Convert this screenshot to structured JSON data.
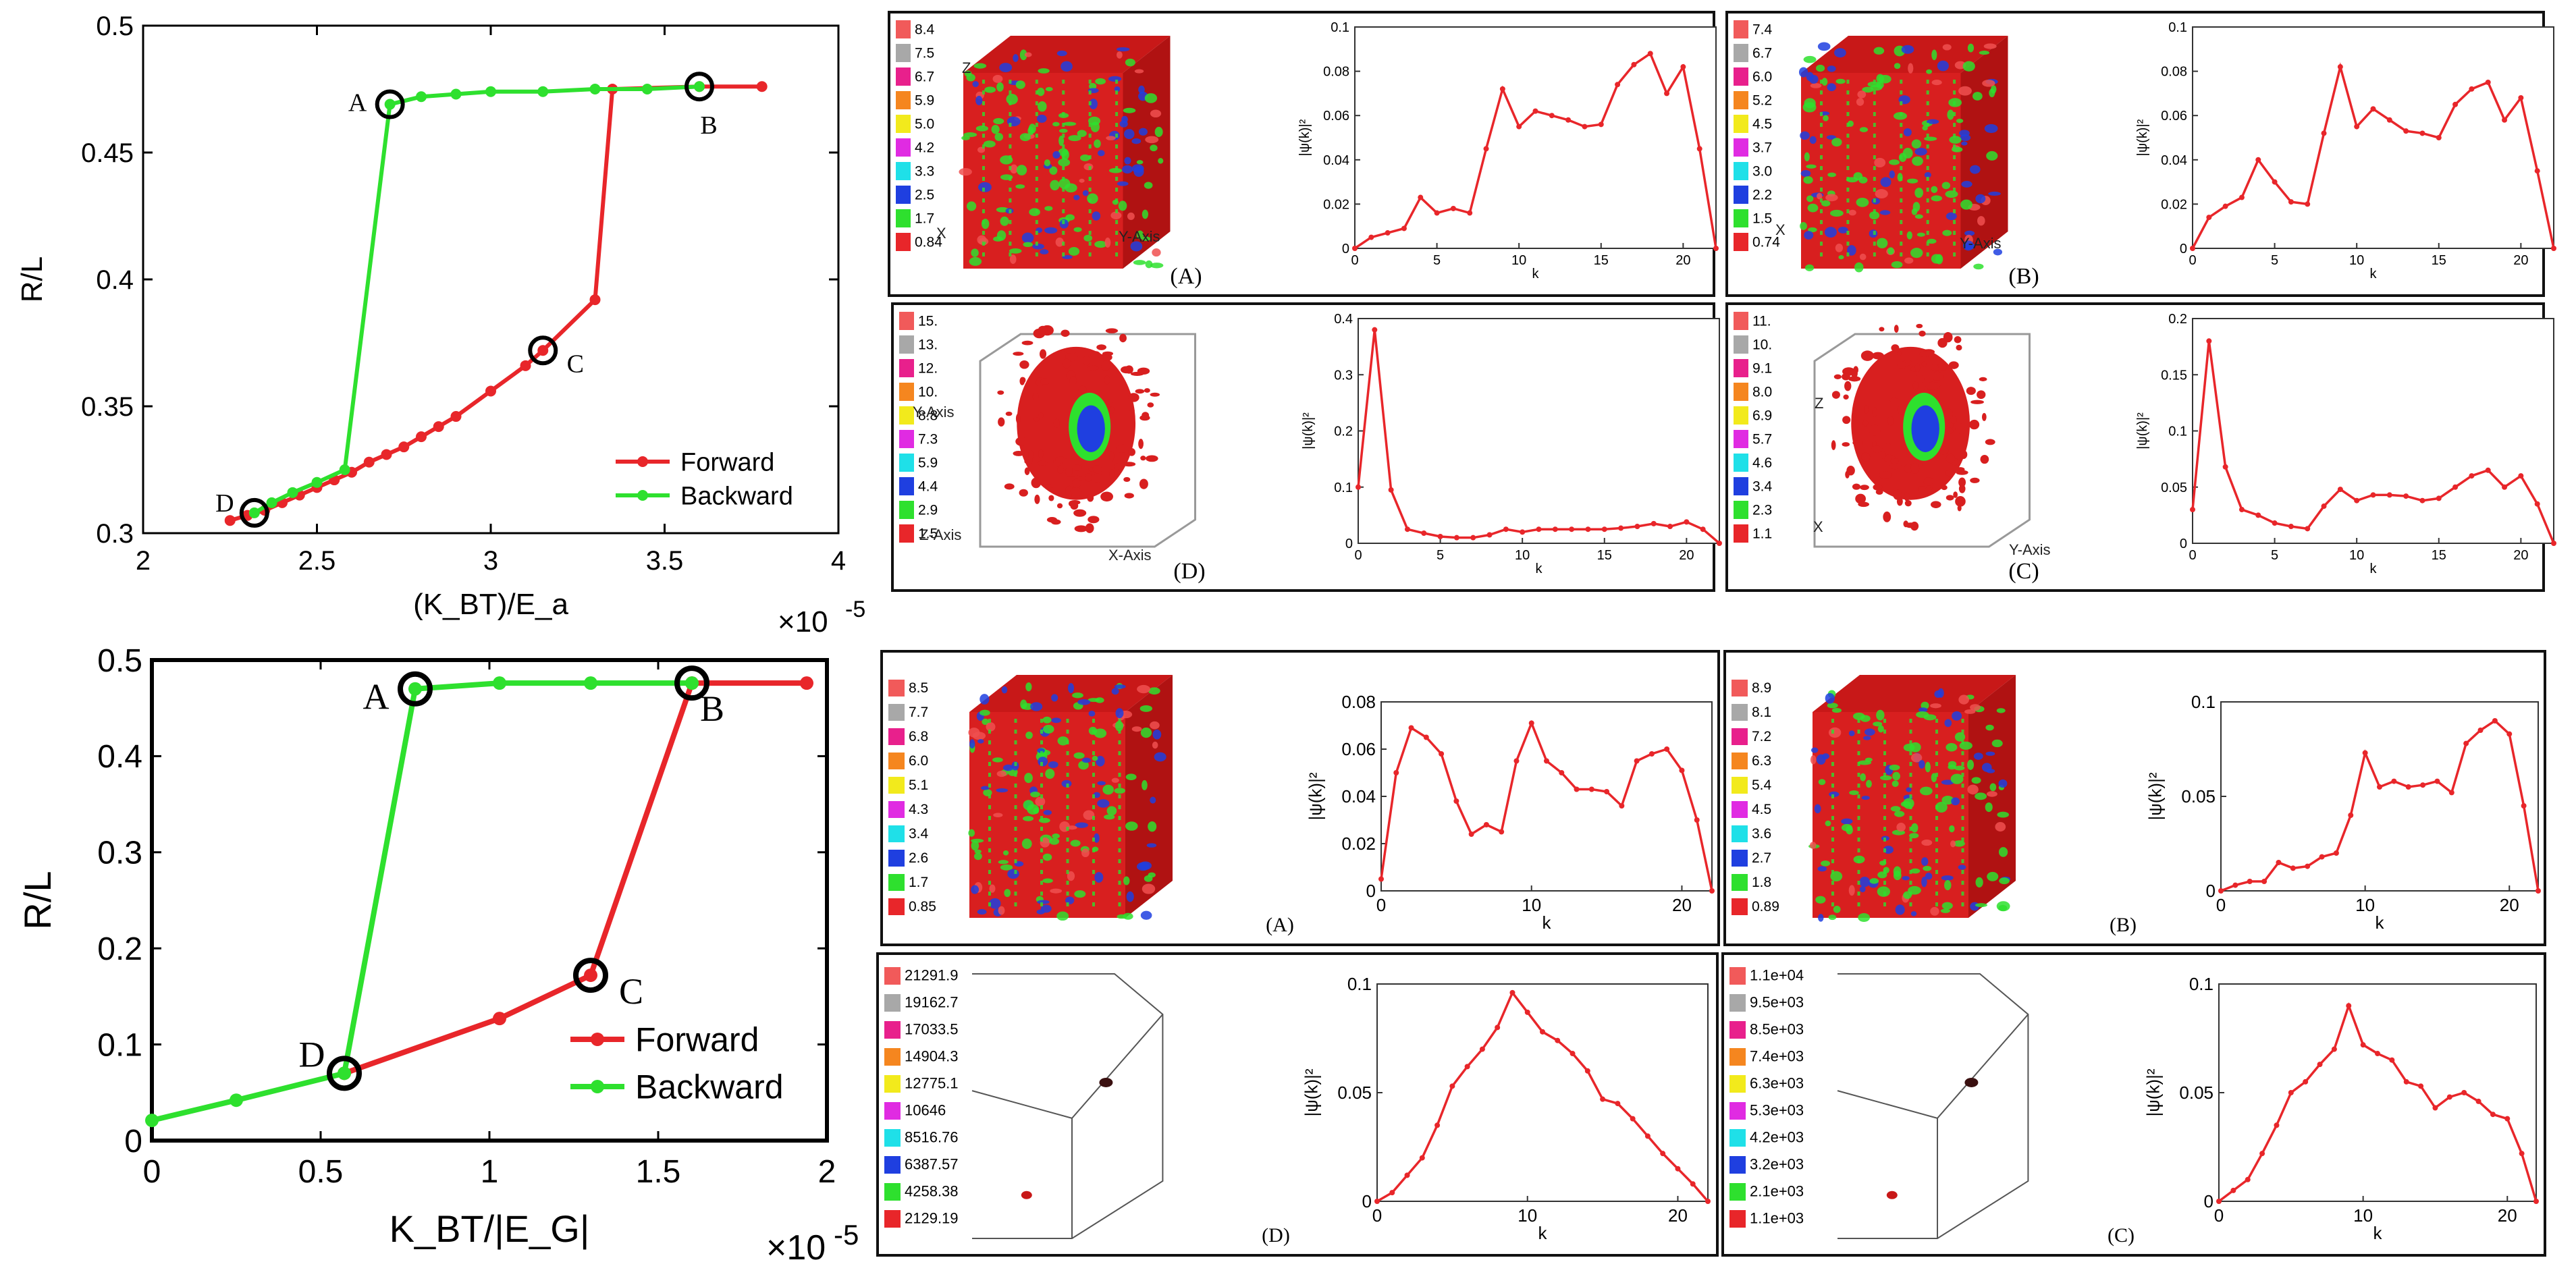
{
  "chart_data": [
    {
      "type": "line",
      "panel": "top-left hysteresis",
      "xlabel": "(K_BT)/E_a",
      "ylabel": "R/L",
      "xlim": [
        2,
        4
      ],
      "ylim": [
        0.3,
        0.5
      ],
      "xticks": [
        "2",
        "2.5",
        "3",
        "3.5",
        "4"
      ],
      "yticks": [
        "0.3",
        "0.35",
        "0.4",
        "0.45",
        "0.5"
      ],
      "x_multiplier": "×10",
      "x_exponent": "-5",
      "legend_position": "bottom-right",
      "series": [
        {
          "name": "Forward",
          "color": "#e8262a",
          "x": [
            2.25,
            2.3,
            2.35,
            2.4,
            2.45,
            2.5,
            2.55,
            2.6,
            2.65,
            2.7,
            2.75,
            2.8,
            2.85,
            2.9,
            3.0,
            3.1,
            3.15,
            3.3,
            3.35,
            3.6,
            3.78
          ],
          "y": [
            0.305,
            0.307,
            0.309,
            0.312,
            0.315,
            0.318,
            0.321,
            0.324,
            0.328,
            0.331,
            0.334,
            0.338,
            0.342,
            0.346,
            0.356,
            0.366,
            0.372,
            0.392,
            0.475,
            0.476,
            0.476
          ]
        },
        {
          "name": "Backward",
          "color": "#2ee02e",
          "x": [
            2.32,
            2.37,
            2.43,
            2.5,
            2.58,
            2.71,
            2.8,
            2.9,
            3.0,
            3.15,
            3.3,
            3.45,
            3.6
          ],
          "y": [
            0.308,
            0.312,
            0.316,
            0.32,
            0.325,
            0.469,
            0.472,
            0.473,
            0.474,
            0.474,
            0.475,
            0.475,
            0.476
          ]
        }
      ],
      "annotations": [
        {
          "label": "A",
          "x": 2.71,
          "y": 0.469
        },
        {
          "label": "B",
          "x": 3.6,
          "y": 0.476
        },
        {
          "label": "C",
          "x": 3.15,
          "y": 0.372
        },
        {
          "label": "D",
          "x": 2.32,
          "y": 0.308
        }
      ]
    },
    {
      "type": "line",
      "panel": "bottom-left hysteresis",
      "xlabel": "K_BT/|E_G|",
      "ylabel": "R/L",
      "xlim": [
        0,
        2
      ],
      "ylim": [
        0,
        0.5
      ],
      "xticks": [
        "0",
        "0.5",
        "1",
        "1.5",
        "2"
      ],
      "yticks": [
        "0",
        "0.1",
        "0.2",
        "0.3",
        "0.4",
        "0.5"
      ],
      "x_multiplier": "×10",
      "x_exponent": "-5",
      "legend_position": "bottom-right",
      "series": [
        {
          "name": "Forward",
          "color": "#e8262a",
          "x": [
            0.57,
            1.03,
            1.3,
            1.6,
            1.94
          ],
          "y": [
            0.07,
            0.127,
            0.172,
            0.476,
            0.476
          ]
        },
        {
          "name": "Backward",
          "color": "#2ee02e",
          "x": [
            0.0,
            0.25,
            0.57,
            0.78,
            1.03,
            1.3,
            1.6
          ],
          "y": [
            0.021,
            0.042,
            0.07,
            0.47,
            0.476,
            0.476,
            0.476
          ]
        }
      ],
      "annotations": [
        {
          "label": "A",
          "x": 0.78,
          "y": 0.47
        },
        {
          "label": "B",
          "x": 1.6,
          "y": 0.476
        },
        {
          "label": "C",
          "x": 1.3,
          "y": 0.172
        },
        {
          "label": "D",
          "x": 0.57,
          "y": 0.07
        }
      ]
    },
    {
      "type": "line",
      "panel": "top-right group A",
      "caption": "(A)",
      "xlabel": "k",
      "ylabel": "|ψ(k)|²",
      "xlim": [
        0,
        22
      ],
      "ylim": [
        0,
        0.1
      ],
      "xticks": [
        "0",
        "5",
        "10",
        "15",
        "20"
      ],
      "yticks": [
        "0",
        "0.02",
        "0.04",
        "0.06",
        "0.08",
        "0.1"
      ],
      "colorbar": [
        "8.4",
        "7.5",
        "6.7",
        "5.9",
        "5.0",
        "4.2",
        "3.3",
        "2.5",
        "1.7",
        "0.84"
      ],
      "axis_labels_3d": [
        "Z",
        "X",
        "Y-Axis"
      ],
      "x": [
        0,
        1,
        2,
        3,
        4,
        5,
        6,
        7,
        8,
        9,
        10,
        11,
        12,
        13,
        14,
        15,
        16,
        17,
        18,
        19,
        20,
        21,
        22
      ],
      "y": [
        0,
        0.005,
        0.007,
        0.009,
        0.023,
        0.016,
        0.018,
        0.016,
        0.045,
        0.072,
        0.055,
        0.062,
        0.06,
        0.058,
        0.055,
        0.056,
        0.074,
        0.083,
        0.088,
        0.07,
        0.082,
        0.045,
        0
      ]
    },
    {
      "type": "line",
      "panel": "top-right group B",
      "caption": "(B)",
      "xlabel": "k",
      "ylabel": "|ψ(k)|²",
      "xlim": [
        0,
        22
      ],
      "ylim": [
        0,
        0.1
      ],
      "xticks": [
        "0",
        "5",
        "10",
        "15",
        "20"
      ],
      "yticks": [
        "0",
        "0.02",
        "0.04",
        "0.06",
        "0.08",
        "0.1"
      ],
      "colorbar": [
        "7.4",
        "6.7",
        "6.0",
        "5.2",
        "4.5",
        "3.7",
        "3.0",
        "2.2",
        "1.5",
        "0.74"
      ],
      "axis_labels_3d": [
        "X",
        "Y-Axis"
      ],
      "x": [
        0,
        1,
        2,
        3,
        4,
        5,
        6,
        7,
        8,
        9,
        10,
        11,
        12,
        13,
        14,
        15,
        16,
        17,
        18,
        19,
        20,
        21,
        22
      ],
      "y": [
        0,
        0.014,
        0.019,
        0.023,
        0.04,
        0.03,
        0.021,
        0.02,
        0.052,
        0.082,
        0.055,
        0.063,
        0.058,
        0.053,
        0.052,
        0.05,
        0.065,
        0.072,
        0.075,
        0.058,
        0.068,
        0.035,
        0
      ]
    },
    {
      "type": "line",
      "panel": "top-right group D",
      "caption": "(D)",
      "xlabel": "k",
      "ylabel": "|ψ(k)|²",
      "xlim": [
        0,
        22
      ],
      "ylim": [
        0,
        0.4
      ],
      "xticks": [
        "0",
        "5",
        "10",
        "15",
        "20"
      ],
      "yticks": [
        "0",
        "0.1",
        "0.2",
        "0.3",
        "0.4"
      ],
      "colorbar": [
        "15.",
        "13.",
        "12.",
        "10.",
        "8.8",
        "7.3",
        "5.9",
        "4.4",
        "2.9",
        "1.5"
      ],
      "axis_labels_3d": [
        "Y-Axis",
        "Z-Axis",
        "X-Axis"
      ],
      "x": [
        0,
        1,
        2,
        3,
        4,
        5,
        6,
        7,
        8,
        9,
        10,
        11,
        12,
        13,
        14,
        15,
        16,
        17,
        18,
        19,
        20,
        21,
        22
      ],
      "y": [
        0.1,
        0.38,
        0.095,
        0.025,
        0.018,
        0.012,
        0.01,
        0.01,
        0.015,
        0.025,
        0.02,
        0.025,
        0.025,
        0.025,
        0.025,
        0.025,
        0.027,
        0.03,
        0.035,
        0.03,
        0.038,
        0.025,
        0
      ]
    },
    {
      "type": "line",
      "panel": "top-right group C",
      "caption": "(C)",
      "xlabel": "k",
      "ylabel": "|ψ(k)|²",
      "xlim": [
        0,
        22
      ],
      "ylim": [
        0,
        0.2
      ],
      "xticks": [
        "0",
        "5",
        "10",
        "15",
        "20"
      ],
      "yticks": [
        "0",
        "0.05",
        "0.1",
        "0.15",
        "0.2"
      ],
      "colorbar": [
        "11.",
        "10.",
        "9.1",
        "8.0",
        "6.9",
        "5.7",
        "4.6",
        "3.4",
        "2.3",
        "1.1"
      ],
      "axis_labels_3d": [
        "Z",
        "X",
        "Y-Axis"
      ],
      "x": [
        0,
        1,
        2,
        3,
        4,
        5,
        6,
        7,
        8,
        9,
        10,
        11,
        12,
        13,
        14,
        15,
        16,
        17,
        18,
        19,
        20,
        21,
        22
      ],
      "y": [
        0.03,
        0.18,
        0.068,
        0.03,
        0.025,
        0.018,
        0.015,
        0.013,
        0.033,
        0.048,
        0.038,
        0.043,
        0.043,
        0.042,
        0.038,
        0.04,
        0.05,
        0.06,
        0.065,
        0.05,
        0.06,
        0.035,
        0
      ]
    },
    {
      "type": "line",
      "panel": "bottom-right group A",
      "caption": "(A)",
      "xlabel": "k",
      "ylabel": "|ψ(k)|²",
      "xlim": [
        0,
        22
      ],
      "ylim": [
        0,
        0.08
      ],
      "xticks": [
        "0",
        "10",
        "20"
      ],
      "yticks": [
        "0",
        "0.02",
        "0.04",
        "0.06",
        "0.08"
      ],
      "colorbar": [
        "8.5",
        "7.7",
        "6.8",
        "6.0",
        "5.1",
        "4.3",
        "3.4",
        "2.6",
        "1.7",
        "0.85"
      ],
      "x": [
        0,
        1,
        2,
        3,
        4,
        5,
        6,
        7,
        8,
        9,
        10,
        11,
        12,
        13,
        14,
        15,
        16,
        17,
        18,
        19,
        20,
        21,
        22
      ],
      "y": [
        0.005,
        0.05,
        0.069,
        0.065,
        0.058,
        0.038,
        0.024,
        0.028,
        0.025,
        0.055,
        0.071,
        0.055,
        0.05,
        0.043,
        0.043,
        0.042,
        0.036,
        0.055,
        0.058,
        0.06,
        0.051,
        0.03,
        0
      ]
    },
    {
      "type": "line",
      "panel": "bottom-right group B",
      "caption": "(B)",
      "xlabel": "k",
      "ylabel": "|ψ(k)|²",
      "xlim": [
        0,
        22
      ],
      "ylim": [
        0,
        0.1
      ],
      "xticks": [
        "0",
        "10",
        "20"
      ],
      "yticks": [
        "0",
        "0.05",
        "0.1"
      ],
      "colorbar": [
        "8.9",
        "8.1",
        "7.2",
        "6.3",
        "5.4",
        "4.5",
        "3.6",
        "2.7",
        "1.8",
        "0.89"
      ],
      "x": [
        0,
        1,
        2,
        3,
        4,
        5,
        6,
        7,
        8,
        9,
        10,
        11,
        12,
        13,
        14,
        15,
        16,
        17,
        18,
        19,
        20,
        21,
        22
      ],
      "y": [
        0,
        0.003,
        0.005,
        0.005,
        0.015,
        0.012,
        0.013,
        0.018,
        0.02,
        0.04,
        0.073,
        0.055,
        0.058,
        0.055,
        0.056,
        0.058,
        0.052,
        0.078,
        0.085,
        0.09,
        0.083,
        0.045,
        0
      ]
    },
    {
      "type": "line",
      "panel": "bottom-right group D",
      "caption": "(D)",
      "xlabel": "k",
      "ylabel": "|ψ(k)|²",
      "xlim": [
        0,
        22
      ],
      "ylim": [
        0,
        0.1
      ],
      "xticks": [
        "0",
        "10",
        "20"
      ],
      "yticks": [
        "0",
        "0.05",
        "0.1"
      ],
      "colorbar": [
        "21291.9",
        "19162.7",
        "17033.5",
        "14904.3",
        "12775.1",
        "10646",
        "8516.76",
        "6387.57",
        "4258.38",
        "2129.19"
      ],
      "x": [
        0,
        1,
        2,
        3,
        4,
        5,
        6,
        7,
        8,
        9,
        10,
        11,
        12,
        13,
        14,
        15,
        16,
        17,
        18,
        19,
        20,
        21,
        22
      ],
      "y": [
        0,
        0.004,
        0.012,
        0.02,
        0.035,
        0.053,
        0.062,
        0.07,
        0.08,
        0.096,
        0.087,
        0.078,
        0.074,
        0.068,
        0.06,
        0.047,
        0.045,
        0.038,
        0.03,
        0.022,
        0.015,
        0.008,
        0
      ]
    },
    {
      "type": "line",
      "panel": "bottom-right group C",
      "caption": "(C)",
      "xlabel": "k",
      "ylabel": "|ψ(k)|²",
      "xlim": [
        0,
        22
      ],
      "ylim": [
        0,
        0.1
      ],
      "xticks": [
        "0",
        "10",
        "20"
      ],
      "yticks": [
        "0",
        "0.05",
        "0.1"
      ],
      "colorbar": [
        "1.1e+04",
        "9.5e+03",
        "8.5e+03",
        "7.4e+03",
        "6.3e+03",
        "5.3e+03",
        "4.2e+03",
        "3.2e+03",
        "2.1e+03",
        "1.1e+03"
      ],
      "x": [
        0,
        1,
        2,
        3,
        4,
        5,
        6,
        7,
        8,
        9,
        10,
        11,
        12,
        13,
        14,
        15,
        16,
        17,
        18,
        19,
        20,
        21,
        22
      ],
      "y": [
        0,
        0.005,
        0.01,
        0.022,
        0.035,
        0.05,
        0.055,
        0.063,
        0.07,
        0.09,
        0.072,
        0.068,
        0.065,
        0.055,
        0.053,
        0.043,
        0.048,
        0.05,
        0.046,
        0.04,
        0.038,
        0.022,
        0
      ]
    }
  ],
  "colorbar_palette": [
    "#f15a5a",
    "#a8a8a8",
    "#e8208c",
    "#f5861f",
    "#f2ea1c",
    "#e02be2",
    "#1fe0e8",
    "#1f3fe0",
    "#2ee02e",
    "#e8262a"
  ]
}
